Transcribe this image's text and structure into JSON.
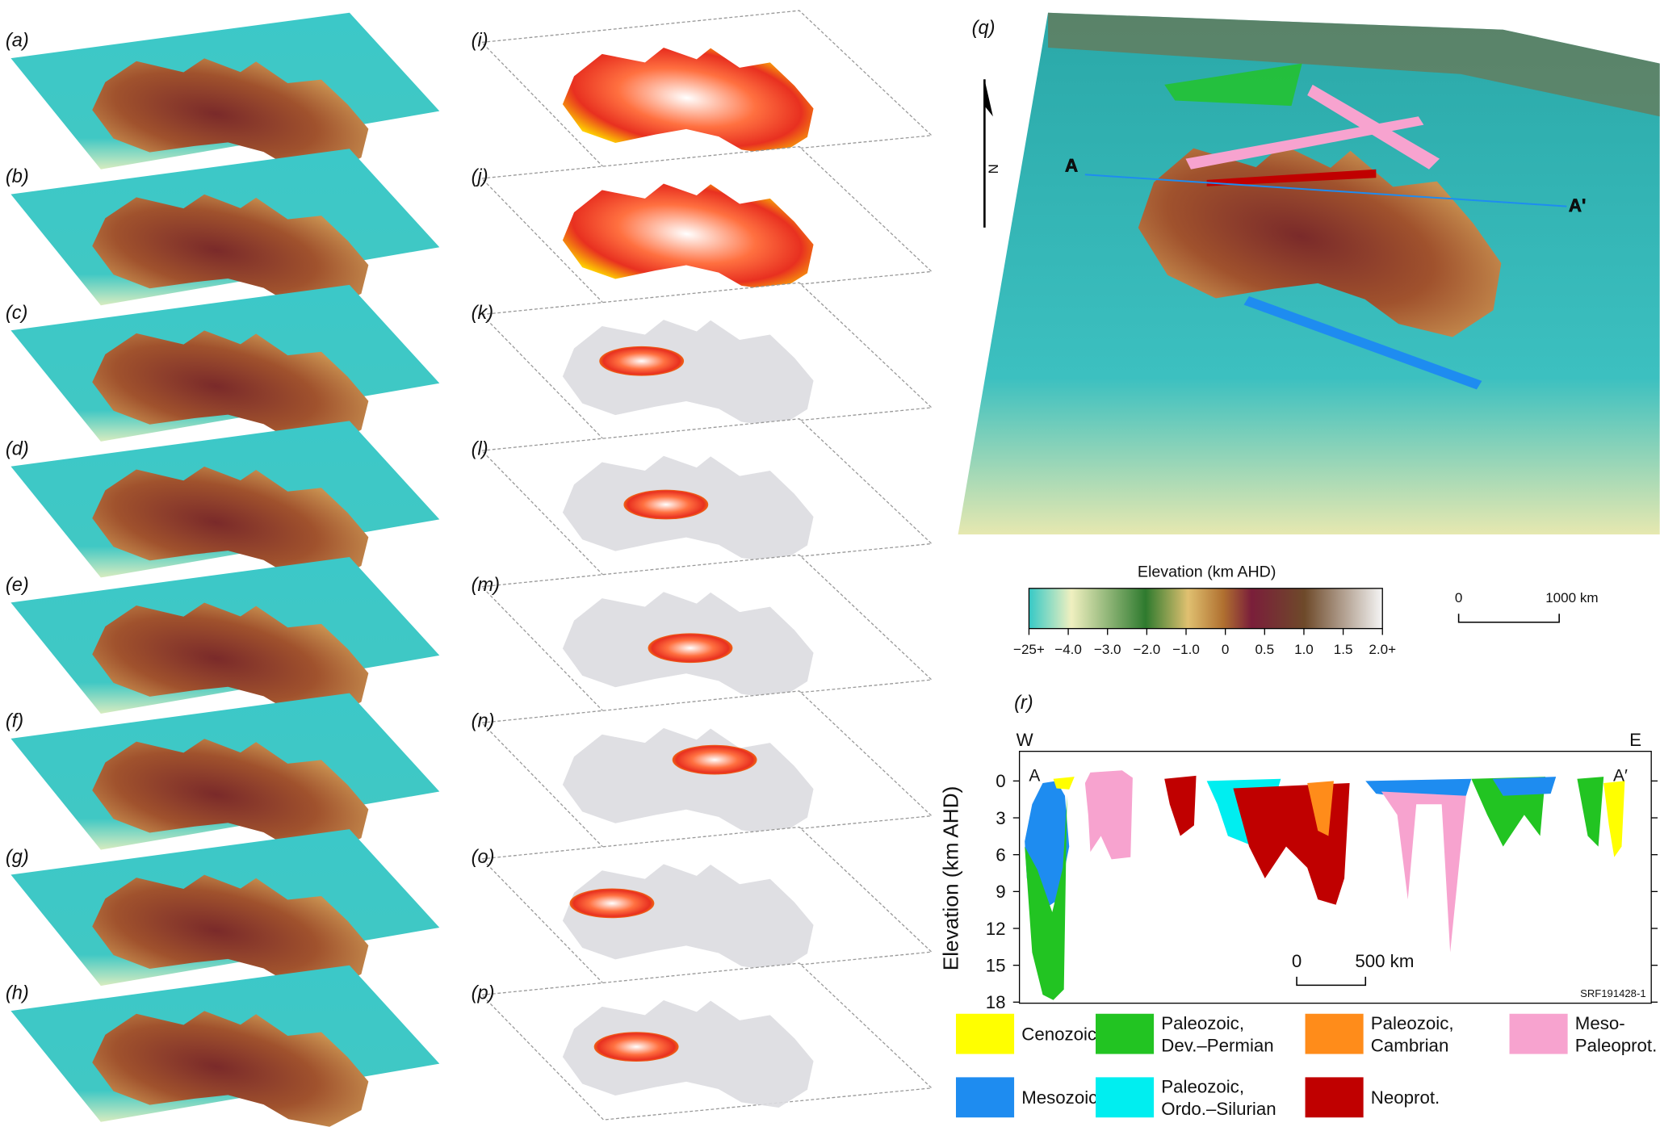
{
  "panels": {
    "left": [
      "(a)",
      "(b)",
      "(c)",
      "(d)",
      "(e)",
      "(f)",
      "(g)",
      "(h)"
    ],
    "middle": [
      "(i)",
      "(j)",
      "(k)",
      "(l)",
      "(m)",
      "(n)",
      "(o)",
      "(p)"
    ]
  },
  "map": {
    "label": "(q)",
    "north": "N",
    "point_a": "A",
    "point_a_prime": "A'"
  },
  "colorbar": {
    "title": "Elevation (km AHD)",
    "ticks": [
      "−25+",
      "−4.0",
      "−3.0",
      "−2.0",
      "−1.0",
      "0",
      "0.5",
      "1.0",
      "1.5",
      "2.0+"
    ]
  },
  "map_scale": {
    "zero": "0",
    "length": "1000 km"
  },
  "section": {
    "label": "(r)",
    "west": "W",
    "east": "E",
    "start": "A",
    "end": "A′",
    "y_label": "Elevation (km AHD)",
    "y_ticks": [
      "0",
      "3",
      "6",
      "9",
      "12",
      "15",
      "18"
    ],
    "scale_zero": "0",
    "scale_length": "500 km",
    "code": "SRF191428-1"
  },
  "legend": [
    {
      "lines": [
        "Cenozoic"
      ],
      "color": "#ffff00"
    },
    {
      "lines": [
        "Paleozoic,",
        "Dev.–Permian"
      ],
      "color": "#22c422"
    },
    {
      "lines": [
        "Paleozoic,",
        "Cambrian"
      ],
      "color": "#ff8c1a"
    },
    {
      "lines": [
        "Meso-",
        "Paleoprot."
      ],
      "color": "#f7a3cf"
    },
    {
      "lines": [
        "Mesozoic"
      ],
      "color": "#1e8cf0"
    },
    {
      "lines": [
        "Paleozoic,",
        "Ordo.–Silurian"
      ],
      "color": "#00eef0"
    },
    {
      "lines": [
        "Neoprot."
      ],
      "color": "#c00000"
    }
  ]
}
